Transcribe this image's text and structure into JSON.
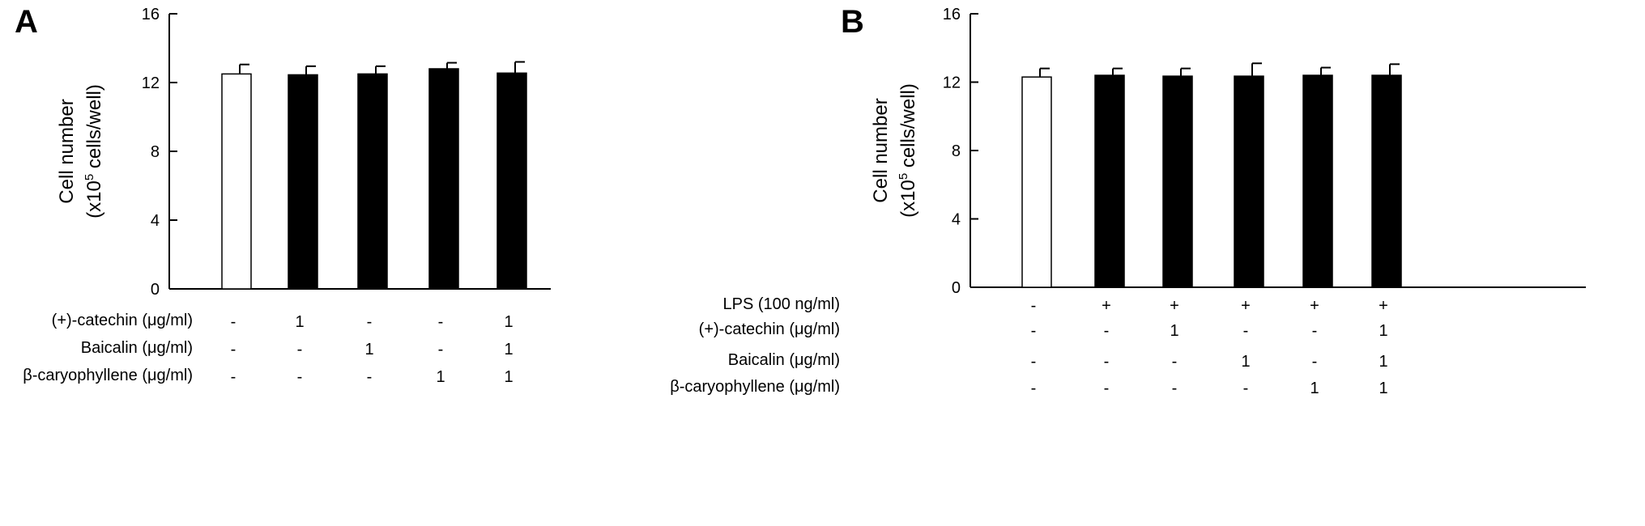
{
  "chart_data": [
    {
      "panel": "A",
      "type": "bar",
      "ylabel_line1": "Cell number",
      "ylabel_line2_pre": "(x10",
      "ylabel_line2_sup": "5",
      "ylabel_line2_post": " cells/well)",
      "ylim": [
        0,
        16
      ],
      "yticks": [
        0,
        4,
        8,
        12,
        16
      ],
      "values": [
        12.5,
        12.45,
        12.5,
        12.8,
        12.55
      ],
      "errors": [
        0.55,
        0.5,
        0.45,
        0.35,
        0.65
      ],
      "bar_colors": [
        "#ffffff",
        "#000000",
        "#000000",
        "#000000",
        "#000000"
      ],
      "conditions": [
        {
          "label": "(+)-catechin (μg/ml)",
          "values": [
            "-",
            "1",
            "-",
            "-",
            "1"
          ]
        },
        {
          "label": "Baicalin (μg/ml)",
          "values": [
            "-",
            "-",
            "1",
            "-",
            "1"
          ]
        },
        {
          "label": "β-caryophyllene (μg/ml)",
          "values": [
            "-",
            "-",
            "-",
            "1",
            "1"
          ]
        }
      ]
    },
    {
      "panel": "B",
      "type": "bar",
      "ylabel_line1": "Cell number",
      "ylabel_line2_pre": "(x10",
      "ylabel_line2_sup": "5",
      "ylabel_line2_post": " cells/well)",
      "ylim": [
        0,
        16
      ],
      "yticks": [
        0,
        4,
        8,
        12,
        16
      ],
      "values": [
        12.3,
        12.4,
        12.35,
        12.35,
        12.4,
        12.4
      ],
      "errors": [
        0.5,
        0.4,
        0.45,
        0.75,
        0.45,
        0.65
      ],
      "bar_colors": [
        "#ffffff",
        "#000000",
        "#000000",
        "#000000",
        "#000000",
        "#000000"
      ],
      "conditions": [
        {
          "label": "LPS (100 ng/ml)",
          "values": [
            "-",
            "+",
            "+",
            "+",
            "+",
            "+"
          ]
        },
        {
          "label": "(+)-catechin (μg/ml)",
          "values": [
            "-",
            "-",
            "1",
            "-",
            "-",
            "1"
          ]
        },
        {
          "label": "Baicalin (μg/ml)",
          "values": [
            "-",
            "-",
            "-",
            "1",
            "-",
            "1"
          ]
        },
        {
          "label": "β-caryophyllene (μg/ml)",
          "values": [
            "-",
            "-",
            "-",
            "-",
            "1",
            "1"
          ]
        }
      ]
    }
  ]
}
